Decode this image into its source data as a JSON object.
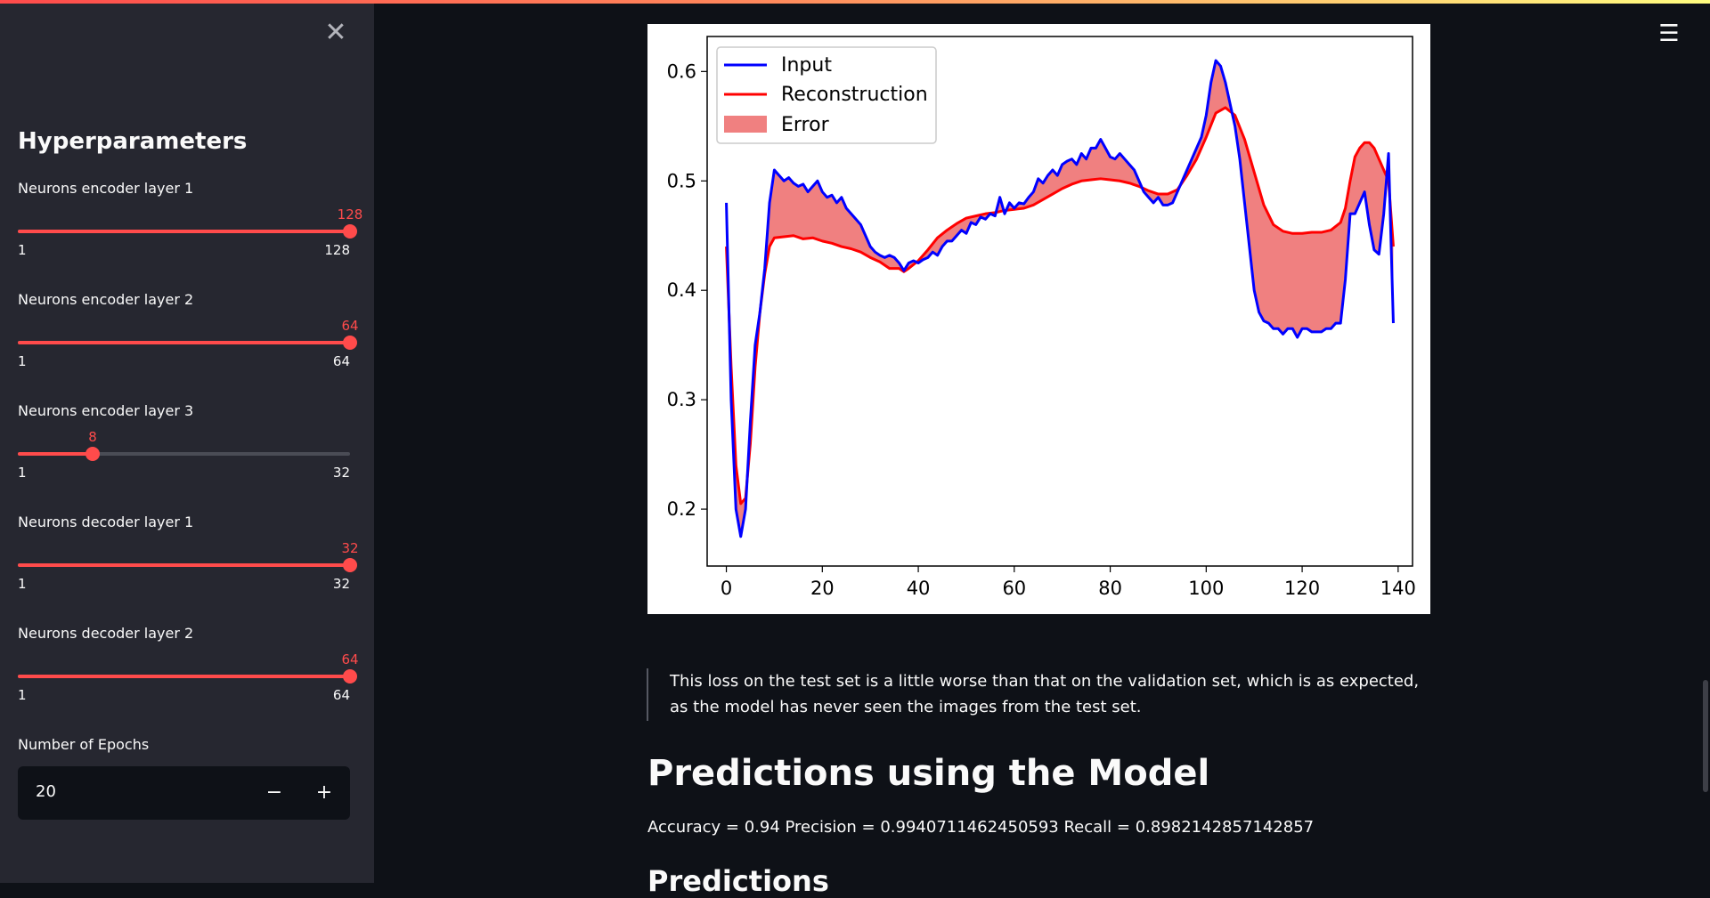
{
  "sidebar": {
    "close_icon": "✕",
    "title": "Hyperparameters",
    "sliders": [
      {
        "label": "Neurons encoder layer 1",
        "value": "128",
        "min": "1",
        "max": "128",
        "fraction": 1.0
      },
      {
        "label": "Neurons encoder layer 2",
        "value": "64",
        "min": "1",
        "max": "64",
        "fraction": 1.0
      },
      {
        "label": "Neurons encoder layer 3",
        "value": "8",
        "min": "1",
        "max": "32",
        "fraction": 0.2258
      },
      {
        "label": "Neurons decoder layer 1",
        "value": "32",
        "min": "1",
        "max": "32",
        "fraction": 1.0
      },
      {
        "label": "Neurons decoder layer 2",
        "value": "64",
        "min": "1",
        "max": "64",
        "fraction": 1.0
      }
    ],
    "epochs": {
      "label": "Number of Epochs",
      "value": "20",
      "minus": "−",
      "plus": "+"
    }
  },
  "main": {
    "menu_icon": "☰",
    "quote": "This loss on the test set is a little worse than that on the validation set, which is as expected, as the model has never seen the images from the test set.",
    "heading": "Predictions using the Model",
    "metrics": "Accuracy = 0.94 Precision = 0.9940711462450593 Recall = 0.8982142857142857",
    "heading2": "Predictions"
  },
  "colors": {
    "accent": "#ff4b4b",
    "input": "#0000ff",
    "reconstruction": "#ff0000",
    "error_fill": "#f08080"
  },
  "chart_data": {
    "type": "line",
    "xlim": [
      -4,
      143
    ],
    "ylim": [
      0.148,
      0.632
    ],
    "xticks": [
      0,
      20,
      40,
      60,
      80,
      100,
      120,
      140
    ],
    "yticks": [
      0.2,
      0.3,
      0.4,
      0.5,
      0.6
    ],
    "legend": [
      "Input",
      "Reconstruction",
      "Error"
    ],
    "legend_position": "top-left",
    "input": [
      [
        0,
        0.48
      ],
      [
        1,
        0.3
      ],
      [
        2,
        0.2
      ],
      [
        3,
        0.175
      ],
      [
        4,
        0.2
      ],
      [
        5,
        0.28
      ],
      [
        6,
        0.35
      ],
      [
        7,
        0.38
      ],
      [
        8,
        0.42
      ],
      [
        9,
        0.48
      ],
      [
        10,
        0.51
      ],
      [
        11,
        0.505
      ],
      [
        12,
        0.5
      ],
      [
        13,
        0.503
      ],
      [
        14,
        0.498
      ],
      [
        15,
        0.495
      ],
      [
        16,
        0.497
      ],
      [
        17,
        0.49
      ],
      [
        18,
        0.495
      ],
      [
        19,
        0.5
      ],
      [
        20,
        0.49
      ],
      [
        21,
        0.485
      ],
      [
        22,
        0.487
      ],
      [
        23,
        0.48
      ],
      [
        24,
        0.485
      ],
      [
        25,
        0.475
      ],
      [
        26,
        0.47
      ],
      [
        27,
        0.465
      ],
      [
        28,
        0.46
      ],
      [
        29,
        0.45
      ],
      [
        30,
        0.44
      ],
      [
        31,
        0.435
      ],
      [
        32,
        0.432
      ],
      [
        33,
        0.43
      ],
      [
        34,
        0.432
      ],
      [
        35,
        0.43
      ],
      [
        36,
        0.425
      ],
      [
        37,
        0.418
      ],
      [
        38,
        0.425
      ],
      [
        39,
        0.427
      ],
      [
        40,
        0.425
      ],
      [
        41,
        0.428
      ],
      [
        42,
        0.43
      ],
      [
        43,
        0.435
      ],
      [
        44,
        0.432
      ],
      [
        45,
        0.44
      ],
      [
        46,
        0.445
      ],
      [
        47,
        0.445
      ],
      [
        48,
        0.45
      ],
      [
        49,
        0.455
      ],
      [
        50,
        0.452
      ],
      [
        51,
        0.462
      ],
      [
        52,
        0.46
      ],
      [
        53,
        0.467
      ],
      [
        54,
        0.465
      ],
      [
        55,
        0.47
      ],
      [
        56,
        0.468
      ],
      [
        57,
        0.485
      ],
      [
        58,
        0.47
      ],
      [
        59,
        0.48
      ],
      [
        60,
        0.475
      ],
      [
        61,
        0.48
      ],
      [
        62,
        0.479
      ],
      [
        63,
        0.485
      ],
      [
        64,
        0.49
      ],
      [
        65,
        0.502
      ],
      [
        66,
        0.498
      ],
      [
        67,
        0.505
      ],
      [
        68,
        0.51
      ],
      [
        69,
        0.505
      ],
      [
        70,
        0.515
      ],
      [
        71,
        0.518
      ],
      [
        72,
        0.52
      ],
      [
        73,
        0.515
      ],
      [
        74,
        0.525
      ],
      [
        75,
        0.52
      ],
      [
        76,
        0.53
      ],
      [
        77,
        0.53
      ],
      [
        78,
        0.538
      ],
      [
        79,
        0.53
      ],
      [
        80,
        0.522
      ],
      [
        81,
        0.52
      ],
      [
        82,
        0.525
      ],
      [
        83,
        0.52
      ],
      [
        84,
        0.515
      ],
      [
        85,
        0.51
      ],
      [
        86,
        0.5
      ],
      [
        87,
        0.49
      ],
      [
        88,
        0.485
      ],
      [
        89,
        0.48
      ],
      [
        90,
        0.485
      ],
      [
        91,
        0.478
      ],
      [
        92,
        0.478
      ],
      [
        93,
        0.48
      ],
      [
        94,
        0.49
      ],
      [
        95,
        0.5
      ],
      [
        96,
        0.51
      ],
      [
        97,
        0.52
      ],
      [
        98,
        0.53
      ],
      [
        99,
        0.54
      ],
      [
        100,
        0.56
      ],
      [
        101,
        0.59
      ],
      [
        102,
        0.61
      ],
      [
        103,
        0.605
      ],
      [
        104,
        0.59
      ],
      [
        105,
        0.57
      ],
      [
        106,
        0.55
      ],
      [
        107,
        0.52
      ],
      [
        108,
        0.48
      ],
      [
        109,
        0.44
      ],
      [
        110,
        0.4
      ],
      [
        111,
        0.38
      ],
      [
        112,
        0.372
      ],
      [
        113,
        0.37
      ],
      [
        114,
        0.365
      ],
      [
        115,
        0.365
      ],
      [
        116,
        0.36
      ],
      [
        117,
        0.365
      ],
      [
        118,
        0.365
      ],
      [
        119,
        0.357
      ],
      [
        120,
        0.365
      ],
      [
        121,
        0.365
      ],
      [
        122,
        0.362
      ],
      [
        123,
        0.362
      ],
      [
        124,
        0.362
      ],
      [
        125,
        0.365
      ],
      [
        126,
        0.365
      ],
      [
        127,
        0.37
      ],
      [
        128,
        0.37
      ],
      [
        129,
        0.41
      ],
      [
        130,
        0.47
      ],
      [
        131,
        0.47
      ],
      [
        132,
        0.48
      ],
      [
        133,
        0.49
      ],
      [
        134,
        0.46
      ],
      [
        135,
        0.437
      ],
      [
        136,
        0.433
      ],
      [
        137,
        0.47
      ],
      [
        138,
        0.525
      ],
      [
        139,
        0.37
      ]
    ],
    "reconstruction": [
      [
        0,
        0.44
      ],
      [
        1,
        0.33
      ],
      [
        2,
        0.24
      ],
      [
        3,
        0.205
      ],
      [
        4,
        0.21
      ],
      [
        5,
        0.26
      ],
      [
        6,
        0.33
      ],
      [
        7,
        0.38
      ],
      [
        8,
        0.415
      ],
      [
        9,
        0.44
      ],
      [
        10,
        0.448
      ],
      [
        12,
        0.449
      ],
      [
        14,
        0.45
      ],
      [
        16,
        0.447
      ],
      [
        18,
        0.448
      ],
      [
        20,
        0.445
      ],
      [
        22,
        0.443
      ],
      [
        24,
        0.44
      ],
      [
        26,
        0.438
      ],
      [
        28,
        0.435
      ],
      [
        30,
        0.43
      ],
      [
        32,
        0.426
      ],
      [
        34,
        0.42
      ],
      [
        36,
        0.42
      ],
      [
        37,
        0.417
      ],
      [
        38,
        0.42
      ],
      [
        40,
        0.427
      ],
      [
        42,
        0.437
      ],
      [
        44,
        0.448
      ],
      [
        46,
        0.455
      ],
      [
        48,
        0.461
      ],
      [
        50,
        0.466
      ],
      [
        52,
        0.468
      ],
      [
        54,
        0.47
      ],
      [
        56,
        0.471
      ],
      [
        58,
        0.473
      ],
      [
        60,
        0.474
      ],
      [
        62,
        0.475
      ],
      [
        64,
        0.478
      ],
      [
        66,
        0.483
      ],
      [
        68,
        0.488
      ],
      [
        70,
        0.493
      ],
      [
        72,
        0.497
      ],
      [
        74,
        0.5
      ],
      [
        76,
        0.501
      ],
      [
        78,
        0.502
      ],
      [
        80,
        0.501
      ],
      [
        82,
        0.5
      ],
      [
        84,
        0.498
      ],
      [
        86,
        0.495
      ],
      [
        88,
        0.491
      ],
      [
        90,
        0.488
      ],
      [
        92,
        0.488
      ],
      [
        94,
        0.492
      ],
      [
        96,
        0.505
      ],
      [
        98,
        0.52
      ],
      [
        100,
        0.54
      ],
      [
        102,
        0.562
      ],
      [
        104,
        0.567
      ],
      [
        106,
        0.56
      ],
      [
        108,
        0.538
      ],
      [
        110,
        0.508
      ],
      [
        112,
        0.478
      ],
      [
        114,
        0.46
      ],
      [
        116,
        0.454
      ],
      [
        118,
        0.452
      ],
      [
        120,
        0.452
      ],
      [
        122,
        0.453
      ],
      [
        124,
        0.453
      ],
      [
        126,
        0.455
      ],
      [
        128,
        0.462
      ],
      [
        129,
        0.475
      ],
      [
        130,
        0.5
      ],
      [
        131,
        0.522
      ],
      [
        132,
        0.53
      ],
      [
        133,
        0.535
      ],
      [
        134,
        0.535
      ],
      [
        135,
        0.53
      ],
      [
        136,
        0.52
      ],
      [
        137,
        0.51
      ],
      [
        138,
        0.5
      ],
      [
        139,
        0.44
      ]
    ]
  }
}
